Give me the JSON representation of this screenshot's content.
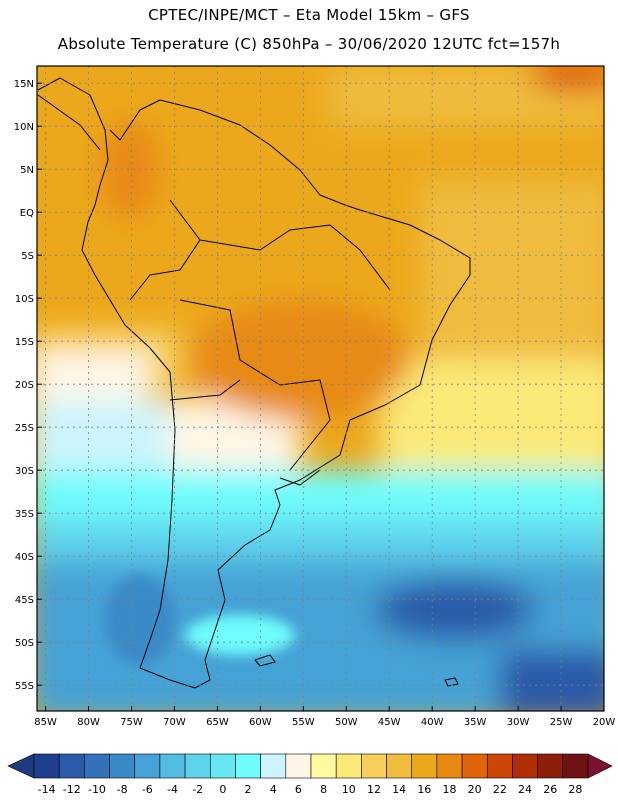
{
  "header": {
    "line1": "CPTEC/INPE/MCT –  Eta Model 15km – GFS",
    "line2": "Absolute Temperature (C) 850hPa – 30/06/2020 12UTC fct=157h"
  },
  "map": {
    "lat_labels": [
      "15N",
      "10N",
      "5N",
      "EQ",
      "5S",
      "10S",
      "15S",
      "20S",
      "25S",
      "30S",
      "35S",
      "40S",
      "45S",
      "50S",
      "55S"
    ],
    "lon_labels": [
      "85W",
      "80W",
      "75W",
      "70W",
      "65W",
      "60W",
      "55W",
      "50W",
      "45W",
      "40W",
      "35W",
      "30W",
      "25W",
      "20W"
    ],
    "lat_range": [
      17,
      -58
    ],
    "lon_range": [
      -86,
      -20
    ]
  },
  "colorbar": {
    "labels": [
      "-14",
      "-12",
      "-10",
      "-8",
      "-6",
      "-4",
      "-2",
      "0",
      "2",
      "4",
      "6",
      "8",
      "10",
      "12",
      "14",
      "16",
      "18",
      "20",
      "22",
      "24",
      "26",
      "28"
    ],
    "colors": [
      "#1f3f8f",
      "#2a5aa8",
      "#3272b8",
      "#3a8ac8",
      "#44a2d6",
      "#52bce2",
      "#5ed4ec",
      "#66e8f4",
      "#6efcfc",
      "#cdf4fc",
      "#fff6e6",
      "#fffaa0",
      "#fbe978",
      "#f7d05c",
      "#f0bc3c",
      "#eca81c",
      "#e88a12",
      "#e0640a",
      "#cc4606",
      "#b02e06",
      "#8c1e0a",
      "#6c1414"
    ],
    "under_color": "#203a80",
    "over_color": "#7c1030"
  }
}
